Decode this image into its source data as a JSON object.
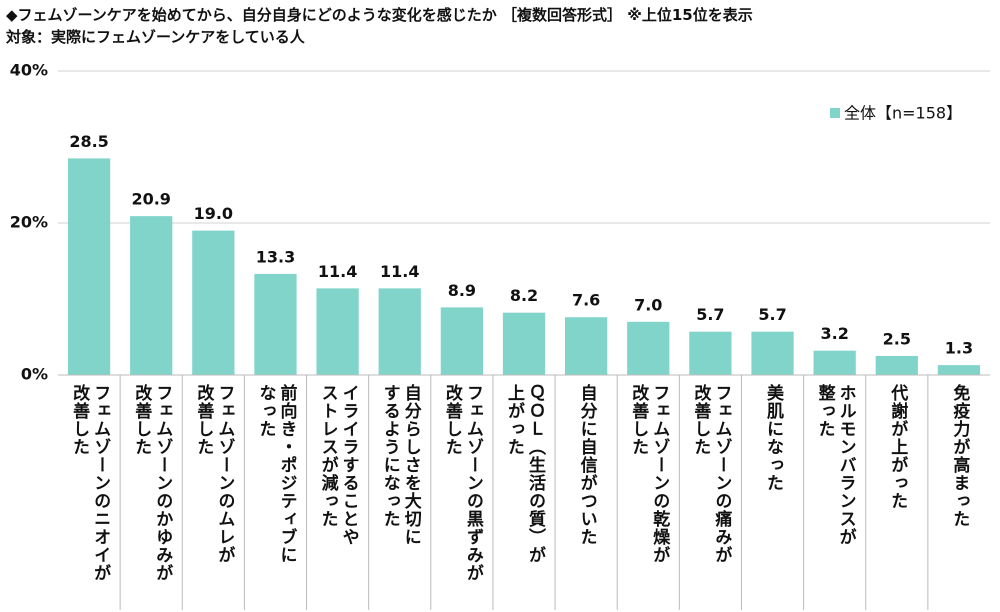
{
  "chart_data": {
    "type": "bar",
    "title": "◆フェムゾーンケアを始めてから、自分自身にどのような変化を感じたか ［複数回答形式］ ※上位15位を表示",
    "subtitle": "対象：実際にフェムゾーンケアをしている人",
    "categories": [
      "フェムゾーンのニオイが\n改善した",
      "フェムゾーンのかゆみが\n改善した",
      "フェムゾーンのムレが\n改善した",
      "前向き・ポジティブに\nなった",
      "イライラすることや\nストレスが減った",
      "自分らしさを大切に\nするようになった",
      "フェムゾーンの黒ずみが\n改善した",
      "ＱＯＬ（生活の質）が\n上がった",
      "自分に自信がついた",
      "フェムゾーンの乾燥が\n改善した",
      "フェムゾーンの痛みが\n改善した",
      "美肌になった",
      "ホルモンバランスが\n整った",
      "代謝が上がった",
      "免疫力が高まった"
    ],
    "series": [
      {
        "name": "全体【n=158】",
        "color": "#81d4c9",
        "values": [
          28.5,
          20.9,
          19.0,
          13.3,
          11.4,
          11.4,
          8.9,
          8.2,
          7.6,
          7.0,
          5.7,
          5.7,
          3.2,
          2.5,
          1.3
        ],
        "value_labels": [
          "28.5",
          "20.9",
          "19.0",
          "13.3",
          "11.4",
          "11.4",
          "8.9",
          "8.2",
          "7.6",
          "7.0",
          "5.7",
          "5.7",
          "3.2",
          "2.5",
          "1.3"
        ]
      }
    ],
    "ylim": [
      0,
      40
    ],
    "yticks": [
      {
        "value": 0,
        "label": "0%"
      },
      {
        "value": 20,
        "label": "20%"
      },
      {
        "value": 40,
        "label": "40%"
      }
    ],
    "grid": true,
    "legend": "top-right"
  }
}
